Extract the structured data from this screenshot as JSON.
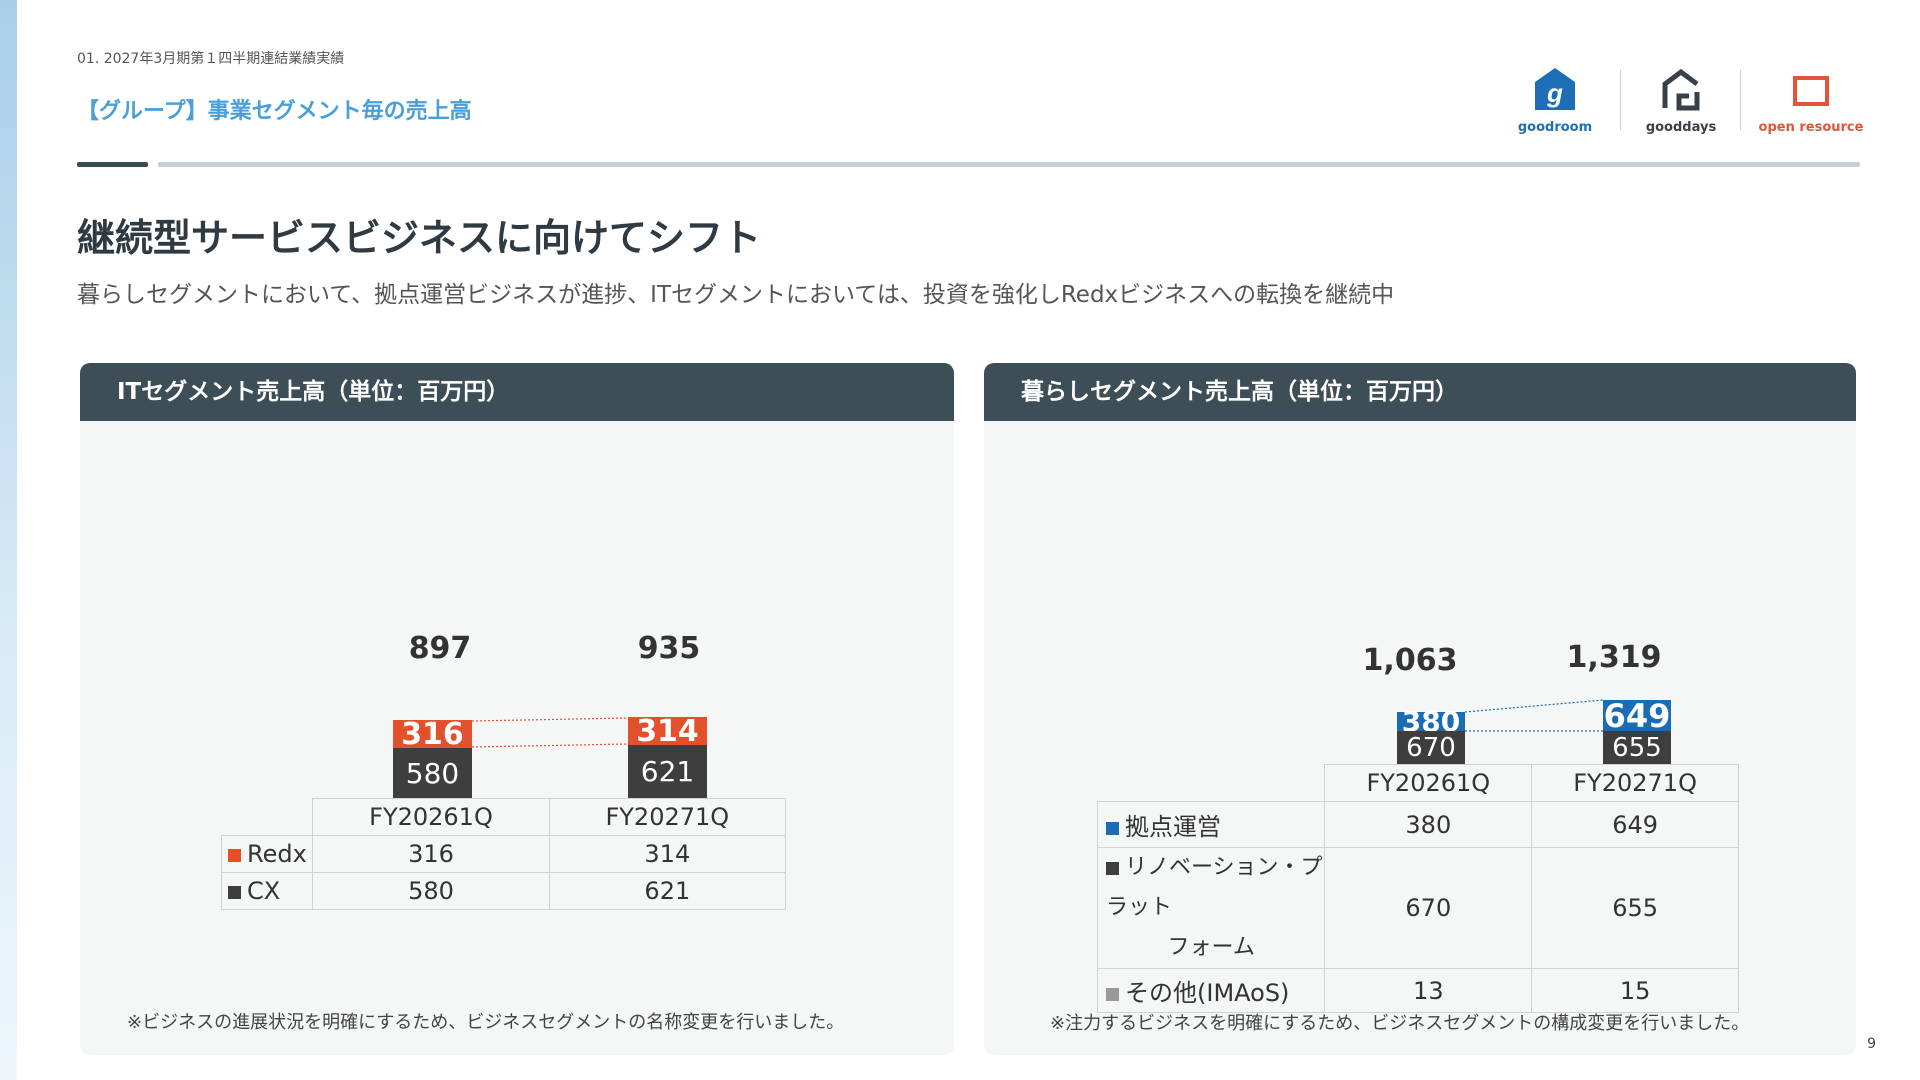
{
  "header": {
    "breadcrumb": "01. 2027年3月期第１四半期連結業績実績",
    "section_title": "【グループ】事業セグメント毎の売上高",
    "logos": [
      {
        "label": "goodroom",
        "glyph": "g",
        "color": "#1f6eb5"
      },
      {
        "label": "gooddays",
        "color": "#3a4047"
      },
      {
        "label": "open resource",
        "color": "#e0553a"
      }
    ]
  },
  "headline": "継続型サービスビジネスに向けてシフト",
  "subline": "暮らしセグメントにおいて、拠点運営ビジネスが進捗、ITセグメントにおいては、投資を強化しRedxビジネスへの転換を継続中",
  "colors": {
    "redx": "#e2512b",
    "cx": "#3e3e3e",
    "kyoten": "#1a6cb5",
    "renovation": "#3e3e3e",
    "other": "#9a9a9a"
  },
  "it_panel": {
    "title": "ITセグメント売上高（単位：百万円）",
    "periods": [
      "FY20261Q",
      "FY20271Q"
    ],
    "totals": [
      "897",
      "935"
    ],
    "rows": [
      {
        "name": "Redx",
        "values": [
          "316",
          "314"
        ]
      },
      {
        "name": "CX",
        "values": [
          "580",
          "621"
        ]
      }
    ],
    "note": "※ビジネスの進展状況を明確にするため、ビジネスセグメントの名称変更を行いました。"
  },
  "life_panel": {
    "title": "暮らしセグメント売上高（単位：百万円）",
    "periods": [
      "FY20261Q",
      "FY20271Q"
    ],
    "totals": [
      "1,063",
      "1,319"
    ],
    "rows": [
      {
        "name": "拠点運営",
        "values": [
          "380",
          "649"
        ]
      },
      {
        "name_line1": "リノベーション・プラット",
        "name_line2": "フォーム",
        "values": [
          "670",
          "655"
        ]
      },
      {
        "name": "その他(IMAoS)",
        "values": [
          "13",
          "15"
        ]
      }
    ],
    "note": "※注力するビジネスを明確にするため、ビジネスセグメントの構成変更を行いました。"
  },
  "page_number": "9",
  "chart_data": [
    {
      "type": "bar",
      "stacked": true,
      "title": "ITセグメント売上高（単位：百万円）",
      "categories": [
        "FY20261Q",
        "FY20271Q"
      ],
      "series": [
        {
          "name": "CX",
          "values": [
            580,
            621
          ]
        },
        {
          "name": "Redx",
          "values": [
            316,
            314
          ]
        }
      ],
      "totals": [
        897,
        935
      ]
    },
    {
      "type": "bar",
      "stacked": true,
      "title": "暮らしセグメント売上高（単位：百万円）",
      "categories": [
        "FY20261Q",
        "FY20271Q"
      ],
      "series": [
        {
          "name": "リノベーション・プラットフォーム",
          "values": [
            670,
            655
          ]
        },
        {
          "name": "拠点運営",
          "values": [
            380,
            649
          ]
        },
        {
          "name": "その他(IMAoS)",
          "values": [
            13,
            15
          ]
        }
      ],
      "totals": [
        1063,
        1319
      ]
    }
  ]
}
